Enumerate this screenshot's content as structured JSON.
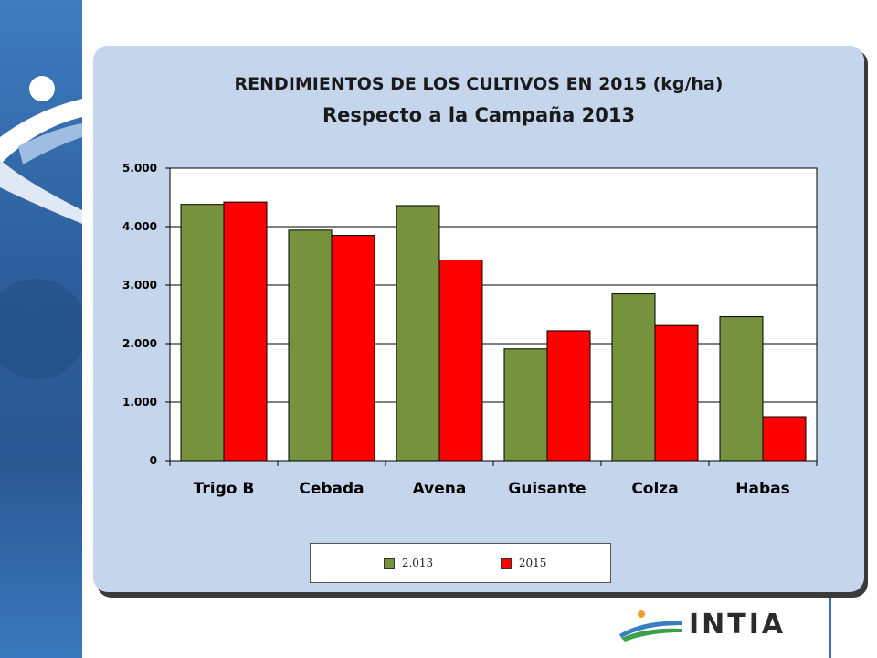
{
  "colors": {
    "series_2013": "#76923c",
    "series_2015": "#ff0000",
    "panel": "#c5d6ec",
    "band": "#2d5f9c"
  },
  "brand": {
    "name": "INTIA",
    "logo_icon": "intia-logo-icon",
    "decoration_icon": "person-swoosh-icon"
  },
  "chart_data": {
    "type": "bar",
    "title": "RENDIMIENTOS  DE LOS CULTIVOS EN 2015 (kg/ha)",
    "subtitle": "Respecto a la Campaña 2013",
    "categories": [
      "Trigo B",
      "Cebada",
      "Avena",
      "Guisante",
      "Colza",
      "Habas"
    ],
    "series": [
      {
        "name": "2.013",
        "values": [
          4380,
          3940,
          4360,
          1910,
          2850,
          2460
        ]
      },
      {
        "name": "2015",
        "values": [
          4420,
          3850,
          3430,
          2220,
          2310,
          750
        ]
      }
    ],
    "ylim": [
      0,
      5000
    ],
    "yticks": [
      0,
      1000,
      2000,
      3000,
      4000,
      5000
    ],
    "ytick_labels": [
      "0",
      "1.000",
      "2.000",
      "3.000",
      "4.000",
      "5.000"
    ],
    "grid": true,
    "legend": "bottom"
  }
}
